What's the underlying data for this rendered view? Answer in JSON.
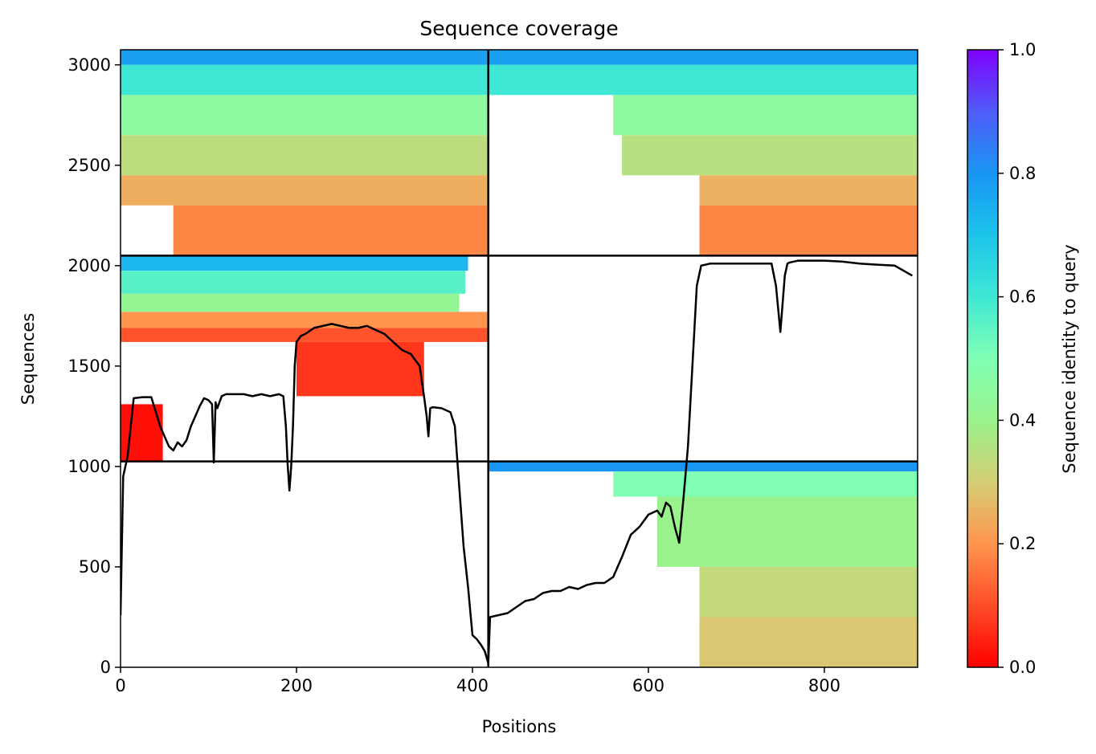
{
  "chart_data": {
    "type": "heatmap",
    "title": "Sequence coverage",
    "xlabel": "Positions",
    "ylabel": "Sequences",
    "xlim": [
      0,
      906
    ],
    "ylim": [
      0,
      3075
    ],
    "x_ticks": [
      0,
      200,
      400,
      600,
      800
    ],
    "y_ticks": [
      0,
      500,
      1000,
      1500,
      2000,
      2500,
      3000
    ],
    "colorbar": {
      "label": "Sequence identity to query",
      "range": [
        0,
        1
      ],
      "ticks": [
        "0.0",
        "0.2",
        "0.4",
        "0.6",
        "0.8",
        "1.0"
      ],
      "colormap": "rainbow_r"
    },
    "divider_lines": {
      "vertical_x": [
        418
      ],
      "horizontal_y": [
        1025,
        2050
      ]
    },
    "blocks": [
      {
        "x": [
          0,
          418
        ],
        "y": [
          1025,
          2050
        ],
        "bands": [
          {
            "y": [
              1975,
              2050
            ],
            "x": [
              0,
              395
            ],
            "identity": 0.73
          },
          {
            "y": [
              1860,
              1975
            ],
            "x": [
              0,
              392
            ],
            "identity": 0.56
          },
          {
            "y": [
              1770,
              1860
            ],
            "x": [
              0,
              385
            ],
            "identity": 0.42
          },
          {
            "y": [
              1690,
              1770
            ],
            "x": [
              0,
              418
            ],
            "identity": 0.2
          },
          {
            "y": [
              1620,
              1690
            ],
            "x": [
              0,
              418
            ],
            "identity": 0.11
          },
          {
            "y": [
              1350,
              1620
            ],
            "x": [
              200,
              345
            ],
            "identity": 0.07
          },
          {
            "y": [
              1025,
              1310
            ],
            "x": [
              0,
              48
            ],
            "identity": 0.02
          }
        ]
      },
      {
        "x": [
          0,
          418
        ],
        "y": [
          2050,
          3075
        ],
        "bands": [
          {
            "y": [
              3000,
              3075
            ],
            "x": [
              0,
              418
            ],
            "identity": 0.78
          },
          {
            "y": [
              2850,
              3000
            ],
            "x": [
              0,
              418
            ],
            "identity": 0.6
          },
          {
            "y": [
              2650,
              2850
            ],
            "x": [
              0,
              418
            ],
            "identity": 0.45
          },
          {
            "y": [
              2450,
              2650
            ],
            "x": [
              0,
              418
            ],
            "identity": 0.34
          },
          {
            "y": [
              2300,
              2450
            ],
            "x": [
              0,
              418
            ],
            "identity": 0.24
          },
          {
            "y": [
              2050,
              2300
            ],
            "x": [
              60,
              418
            ],
            "identity": 0.18
          }
        ]
      },
      {
        "x": [
          418,
          906
        ],
        "y": [
          2050,
          3075
        ],
        "bands": [
          {
            "y": [
              3000,
              3075
            ],
            "x": [
              418,
              906
            ],
            "identity": 0.78
          },
          {
            "y": [
              2850,
              3000
            ],
            "x": [
              418,
              906
            ],
            "identity": 0.6
          },
          {
            "y": [
              2650,
              2850
            ],
            "x": [
              560,
              906
            ],
            "identity": 0.45
          },
          {
            "y": [
              2450,
              2650
            ],
            "x": [
              570,
              906
            ],
            "identity": 0.35
          },
          {
            "y": [
              2300,
              2450
            ],
            "x": [
              658,
              906
            ],
            "identity": 0.25
          },
          {
            "y": [
              2050,
              2300
            ],
            "x": [
              658,
              906
            ],
            "identity": 0.18
          }
        ]
      },
      {
        "x": [
          418,
          906
        ],
        "y": [
          0,
          1025
        ],
        "bands": [
          {
            "y": [
              975,
              1025
            ],
            "x": [
              418,
              906
            ],
            "identity": 0.8
          },
          {
            "y": [
              850,
              975
            ],
            "x": [
              560,
              906
            ],
            "identity": 0.5
          },
          {
            "y": [
              500,
              850
            ],
            "x": [
              610,
              906
            ],
            "identity": 0.4
          },
          {
            "y": [
              250,
              500
            ],
            "x": [
              658,
              906
            ],
            "identity": 0.33
          },
          {
            "y": [
              0,
              250
            ],
            "x": [
              658,
              906
            ],
            "identity": 0.29
          }
        ]
      }
    ],
    "coverage_line": {
      "x": [
        0,
        3,
        8,
        15,
        25,
        35,
        45,
        50,
        55,
        60,
        65,
        70,
        75,
        80,
        85,
        90,
        95,
        100,
        104,
        106,
        108,
        110,
        115,
        120,
        130,
        140,
        150,
        160,
        170,
        180,
        185,
        188,
        190,
        192,
        194,
        196,
        198,
        200,
        205,
        210,
        220,
        230,
        240,
        250,
        260,
        270,
        280,
        290,
        300,
        310,
        320,
        330,
        340,
        345,
        348,
        350,
        352,
        355,
        365,
        375,
        380,
        385,
        390,
        395,
        400,
        405,
        410,
        414,
        418,
        420,
        430,
        440,
        450,
        460,
        470,
        480,
        490,
        500,
        510,
        520,
        530,
        540,
        550,
        560,
        565,
        570,
        580,
        590,
        600,
        610,
        615,
        620,
        625,
        630,
        635,
        640,
        645,
        650,
        655,
        660,
        665,
        670,
        680,
        690,
        700,
        710,
        720,
        730,
        740,
        745,
        750,
        755,
        758,
        760,
        765,
        770,
        780,
        800,
        820,
        840,
        860,
        880,
        900,
        906
      ],
      "y": [
        260,
        950,
        1050,
        1340,
        1345,
        1345,
        1200,
        1150,
        1100,
        1080,
        1120,
        1100,
        1130,
        1200,
        1250,
        1300,
        1340,
        1330,
        1310,
        1020,
        1320,
        1290,
        1350,
        1360,
        1360,
        1360,
        1350,
        1360,
        1350,
        1360,
        1350,
        1200,
        1010,
        880,
        1000,
        1200,
        1500,
        1620,
        1650,
        1660,
        1690,
        1700,
        1710,
        1700,
        1690,
        1690,
        1700,
        1680,
        1660,
        1620,
        1580,
        1560,
        1500,
        1350,
        1250,
        1150,
        1290,
        1295,
        1290,
        1270,
        1200,
        900,
        600,
        400,
        160,
        140,
        110,
        80,
        20,
        250,
        260,
        270,
        300,
        330,
        340,
        370,
        380,
        380,
        400,
        390,
        410,
        420,
        420,
        450,
        500,
        550,
        660,
        700,
        760,
        780,
        750,
        820,
        800,
        700,
        620,
        850,
        1100,
        1500,
        1900,
        2000,
        2005,
        2010,
        2010,
        2010,
        2010,
        2010,
        2010,
        2010,
        2010,
        1900,
        1670,
        1950,
        2010,
        2015,
        2020,
        2025,
        2025,
        2025,
        2020,
        2010,
        2005,
        2000,
        1950
      ]
    }
  }
}
